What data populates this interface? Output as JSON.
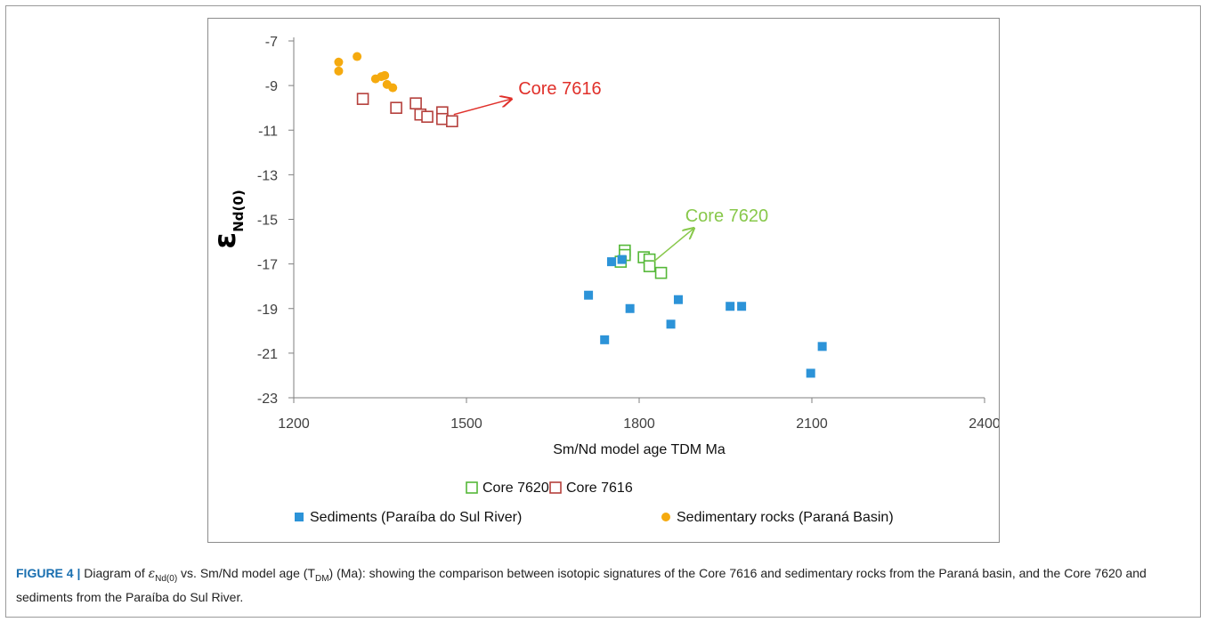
{
  "chart_data": {
    "type": "scatter",
    "xlabel": "Sm/Nd model age TDM Ma",
    "ylabel_symbol": "ε",
    "ylabel_sub": "Nd(0)",
    "xlim": [
      1200,
      2400
    ],
    "ylim": [
      -23,
      -7
    ],
    "x_ticks": [
      1200,
      1500,
      1800,
      2100,
      2400
    ],
    "y_ticks": [
      -7,
      -9,
      -11,
      -13,
      -15,
      -17,
      -19,
      -21,
      -23
    ],
    "grid": false,
    "legend_position": "bottom",
    "series": [
      {
        "name": "Core 7620",
        "marker": "open-square",
        "color": "#55b838",
        "points": [
          [
            1775,
            -16.4
          ],
          [
            1775,
            -16.6
          ],
          [
            1768,
            -16.9
          ],
          [
            1808,
            -16.7
          ],
          [
            1818,
            -16.8
          ],
          [
            1818,
            -17.1
          ],
          [
            1838,
            -17.4
          ]
        ]
      },
      {
        "name": "Core 7616",
        "marker": "open-square",
        "color": "#b5403c",
        "points": [
          [
            1320,
            -9.6
          ],
          [
            1378,
            -10.0
          ],
          [
            1412,
            -9.8
          ],
          [
            1420,
            -10.3
          ],
          [
            1432,
            -10.4
          ],
          [
            1458,
            -10.2
          ],
          [
            1458,
            -10.5
          ],
          [
            1475,
            -10.6
          ]
        ]
      },
      {
        "name": "Sediments (Paraíba do Sul River)",
        "marker": "filled-square",
        "color": "#2c93d8",
        "points": [
          [
            1712,
            -18.4
          ],
          [
            1740,
            -20.4
          ],
          [
            1752,
            -16.9
          ],
          [
            1770,
            -16.8
          ],
          [
            1784,
            -19.0
          ],
          [
            1855,
            -19.7
          ],
          [
            1868,
            -18.6
          ],
          [
            1958,
            -18.9
          ],
          [
            1978,
            -18.9
          ],
          [
            2098,
            -21.9
          ],
          [
            2118,
            -20.7
          ]
        ]
      },
      {
        "name": "Sedimentary rocks (Paraná Basin)",
        "marker": "filled-circle",
        "color": "#f5aa0f",
        "points": [
          [
            1278,
            -7.95
          ],
          [
            1278,
            -8.35
          ],
          [
            1310,
            -7.7
          ],
          [
            1342,
            -8.7
          ],
          [
            1352,
            -8.6
          ],
          [
            1358,
            -8.55
          ],
          [
            1362,
            -8.95
          ],
          [
            1372,
            -9.1
          ]
        ]
      }
    ],
    "annotations": [
      {
        "text": "Core 7616",
        "color": "#e0302a",
        "x": 1590,
        "y": -9.4,
        "arrow_from": [
          1478,
          -10.3
        ],
        "arrow_to": [
          1578,
          -9.6
        ]
      },
      {
        "text": "Core 7620",
        "color": "#88c84b",
        "x": 1880,
        "y": -15.1,
        "arrow_from": [
          1825,
          -16.9
        ],
        "arrow_to": [
          1895,
          -15.4
        ]
      }
    ]
  },
  "caption": {
    "label": "FIGURE 4 |",
    "text_pre": " Diagram of ",
    "eps_symbol": "ε",
    "eps_sub": "Nd(0)",
    "text_mid": " vs. Sm/Nd model age (T",
    "tdm_sub": "DM",
    "text_post": ") (Ma): showing the comparison between isotopic signatures of the Core 7616 and sedimentary rocks from the Paraná basin, and the Core 7620 and sediments from the Paraíba do Sul River."
  }
}
